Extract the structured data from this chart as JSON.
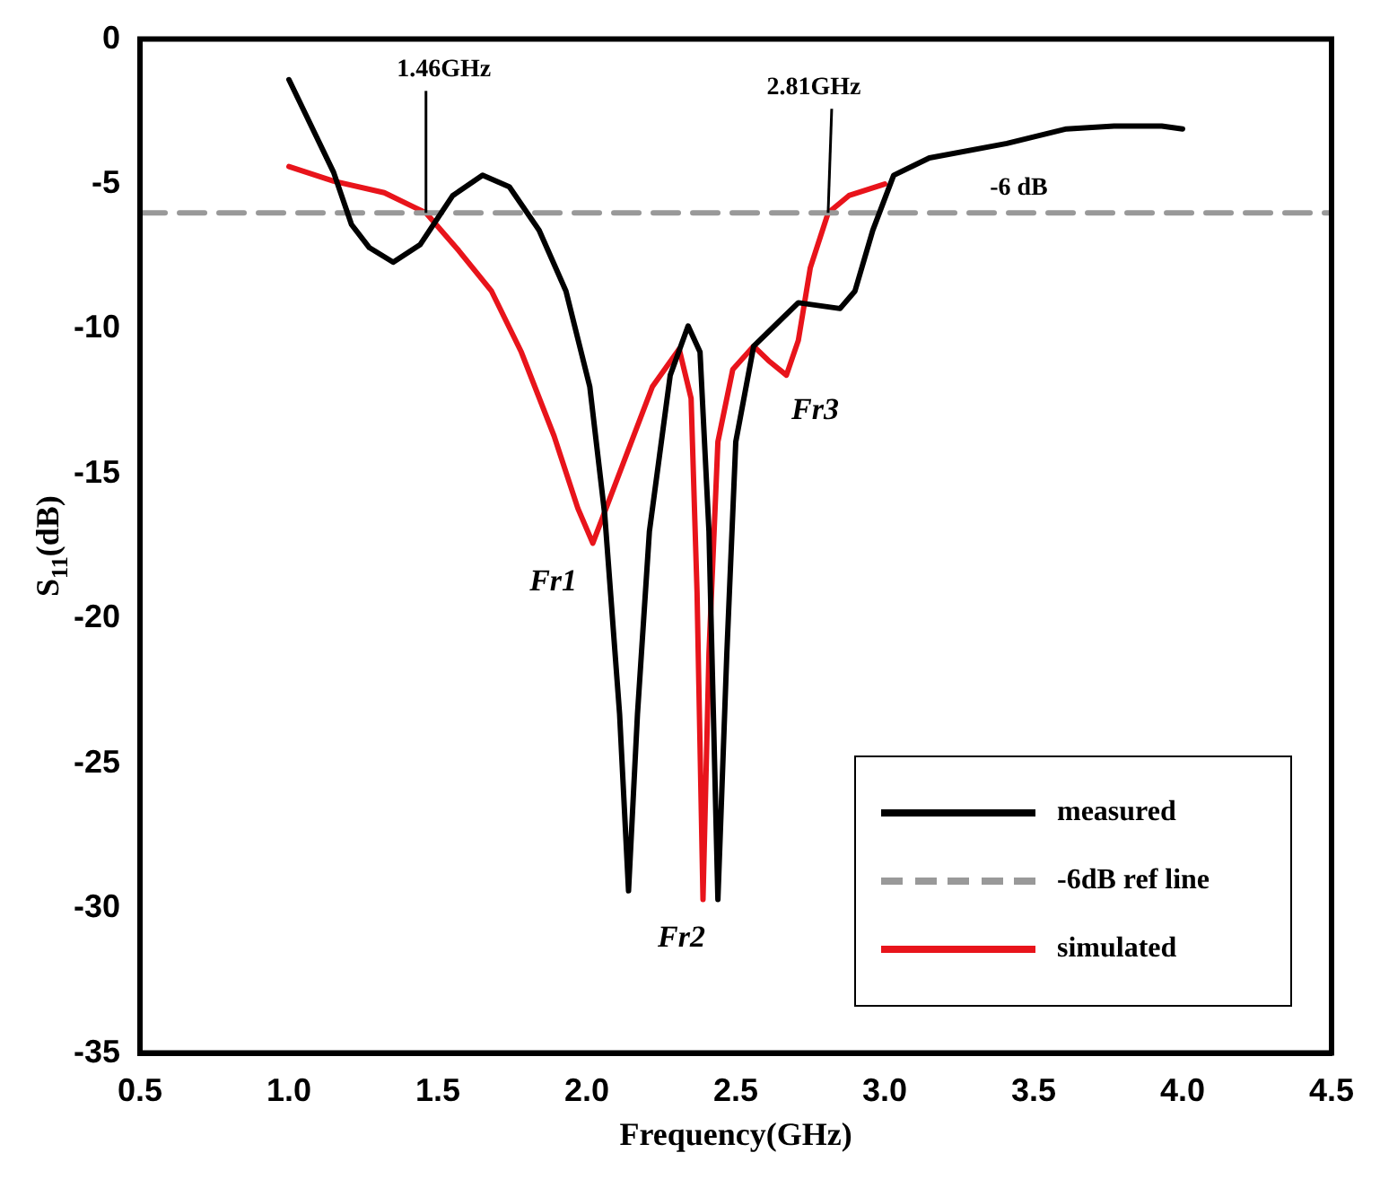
{
  "chart_data": {
    "type": "line",
    "xlabel": "Frequency(GHz)",
    "ylabel": "S$_{11}$(dB)",
    "xlim": [
      0.5,
      4.5
    ],
    "xticks": [
      {
        "value": 0.5,
        "label": "0.5"
      },
      {
        "value": 1,
        "label": "1.0"
      },
      {
        "value": 1.5,
        "label": "1.5"
      },
      {
        "value": 2,
        "label": "2.0"
      },
      {
        "value": 2.5,
        "label": "2.5"
      },
      {
        "value": 3,
        "label": "3.0"
      },
      {
        "value": 3.5,
        "label": "3.5"
      },
      {
        "value": 4,
        "label": "4.0"
      },
      {
        "value": 4.5,
        "label": "4.5"
      }
    ],
    "ylim": [
      -35,
      0
    ],
    "yticks": [
      -35,
      -30,
      -25,
      -20,
      -15,
      -10,
      -5,
      0
    ],
    "grid": false,
    "legend": "bottom right",
    "marker": "none",
    "series": [
      {
        "name": "measured",
        "color": "#000000",
        "line_style": "solid",
        "x": [
          1.0,
          1.15,
          1.21,
          1.27,
          1.35,
          1.44,
          1.55,
          1.65,
          1.74,
          1.84,
          1.93,
          2.01,
          2.06,
          2.11,
          2.14,
          2.17,
          2.21,
          2.28,
          2.34,
          2.38,
          2.41,
          2.44,
          2.47,
          2.5,
          2.56,
          2.63,
          2.71,
          2.85,
          2.9,
          2.96,
          3.03,
          3.15,
          3.41,
          3.61,
          3.77,
          3.93,
          4.0
        ],
        "values": [
          -1.4,
          -4.6,
          -6.4,
          -7.2,
          -7.7,
          -7.1,
          -5.4,
          -4.7,
          -5.1,
          -6.6,
          -8.7,
          -12.0,
          -16.4,
          -23.3,
          -29.4,
          -23.3,
          -17.0,
          -11.6,
          -9.9,
          -10.8,
          -17.0,
          -29.7,
          -21.2,
          -13.9,
          -10.6,
          -9.9,
          -9.1,
          -9.3,
          -8.7,
          -6.6,
          -4.7,
          -4.1,
          -3.6,
          -3.1,
          -3.0,
          -3.0,
          -3.1
        ]
      },
      {
        "name": "-6dB ref line",
        "color": "#999999",
        "line_style": "dashed",
        "x": [
          0.5,
          4.5
        ],
        "values": [
          -6,
          -6
        ]
      },
      {
        "name": "simulated",
        "color": "#e8141b",
        "line_style": "solid",
        "x": [
          1.0,
          1.15,
          1.32,
          1.42,
          1.46,
          1.57,
          1.68,
          1.78,
          1.89,
          1.97,
          2.02,
          2.12,
          2.22,
          2.31,
          2.35,
          2.37,
          2.39,
          2.41,
          2.44,
          2.49,
          2.56,
          2.61,
          2.67,
          2.71,
          2.75,
          2.81,
          2.88,
          3.0
        ],
        "values": [
          -4.4,
          -4.9,
          -5.3,
          -5.8,
          -6.0,
          -7.3,
          -8.7,
          -10.8,
          -13.7,
          -16.2,
          -17.4,
          -14.7,
          -12.0,
          -10.7,
          -12.4,
          -19.1,
          -29.7,
          -21.2,
          -13.9,
          -11.4,
          -10.6,
          -11.1,
          -11.6,
          -10.4,
          -7.9,
          -6.0,
          -5.4,
          -5.0
        ]
      }
    ],
    "annotations": [
      {
        "text": "1.46GHz",
        "x": 1.46,
        "y": -6
      },
      {
        "text": "2.81GHz",
        "x": 2.81,
        "y": -6
      },
      {
        "text": "-6 dB",
        "x": 3.45,
        "y": -6
      },
      {
        "text": "Fr1",
        "x": 2.02,
        "y": -17.4
      },
      {
        "text": "Fr2",
        "x": 2.39,
        "y": -29.7
      },
      {
        "text": "Fr3",
        "x": 2.67,
        "y": -11.6
      }
    ]
  }
}
